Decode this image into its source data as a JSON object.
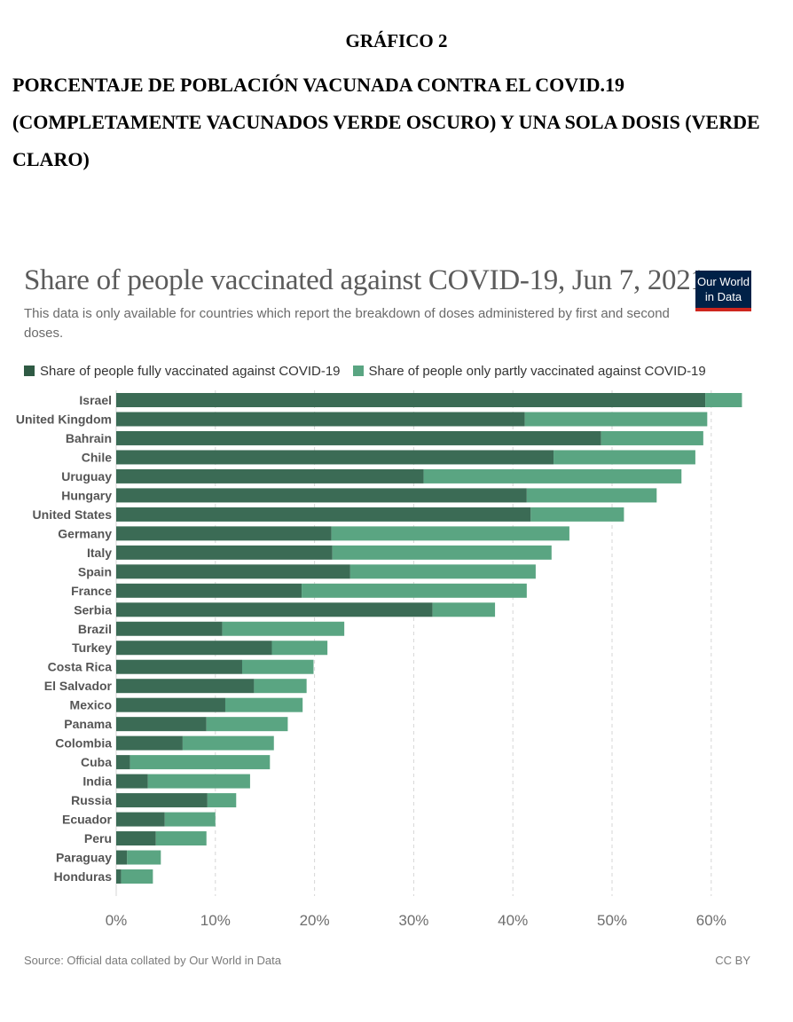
{
  "header": {
    "figure_label": "GRÁFICO 2",
    "title": "PORCENTAJE DE POBLACIÓN VACUNADA CONTRA EL COVID.19 (COMPLETAMENTE VACUNADOS VERDE OSCURO) Y UNA SOLA DOSIS (VERDE CLARO)"
  },
  "logo": {
    "line1": "Our World",
    "line2": "in Data"
  },
  "footer": {
    "source": "Source: Official data collated by Our World in Data",
    "license": "CC BY"
  },
  "colors": {
    "fully": "#3b6b55",
    "partly": "#5aa582",
    "logo_bg": "#002147",
    "logo_accent": "#ce261e"
  },
  "chart_data": {
    "type": "bar",
    "orientation": "horizontal",
    "stacked": true,
    "title": "Share of people vaccinated against COVID-19, Jun 7, 2021",
    "subtitle": "This data is only available for countries which report the breakdown of doses administered by first and second doses.",
    "categories": [
      "Israel",
      "United Kingdom",
      "Bahrain",
      "Chile",
      "Uruguay",
      "Hungary",
      "United States",
      "Germany",
      "Italy",
      "Spain",
      "France",
      "Serbia",
      "Brazil",
      "Turkey",
      "Costa Rica",
      "El Salvador",
      "Mexico",
      "Panama",
      "Colombia",
      "Cuba",
      "India",
      "Russia",
      "Ecuador",
      "Peru",
      "Paraguay",
      "Honduras"
    ],
    "series": [
      {
        "name": "Share of people fully vaccinated against COVID-19",
        "values": [
          59.4,
          41.2,
          48.9,
          44.1,
          31.0,
          41.4,
          41.8,
          21.7,
          21.8,
          23.6,
          18.7,
          31.9,
          10.7,
          15.7,
          12.7,
          13.9,
          11.0,
          9.1,
          6.7,
          1.4,
          3.2,
          9.2,
          4.9,
          4.0,
          1.1,
          0.5
        ]
      },
      {
        "name": "Share of people only partly vaccinated against COVID-19",
        "values": [
          3.7,
          18.4,
          10.3,
          14.3,
          26.0,
          13.1,
          9.4,
          24.0,
          22.1,
          18.7,
          22.7,
          6.3,
          12.3,
          5.6,
          7.2,
          5.3,
          7.8,
          8.2,
          9.2,
          14.1,
          10.3,
          2.9,
          5.1,
          5.1,
          3.4,
          3.2
        ]
      }
    ],
    "xlim": [
      0,
      63
    ],
    "x_ticks": [
      "0%",
      "10%",
      "20%",
      "30%",
      "40%",
      "50%",
      "60%"
    ],
    "x_tick_values": [
      0,
      10,
      20,
      30,
      40,
      50,
      60
    ],
    "grid": "vertical dashed",
    "legend_position": "top-left"
  }
}
